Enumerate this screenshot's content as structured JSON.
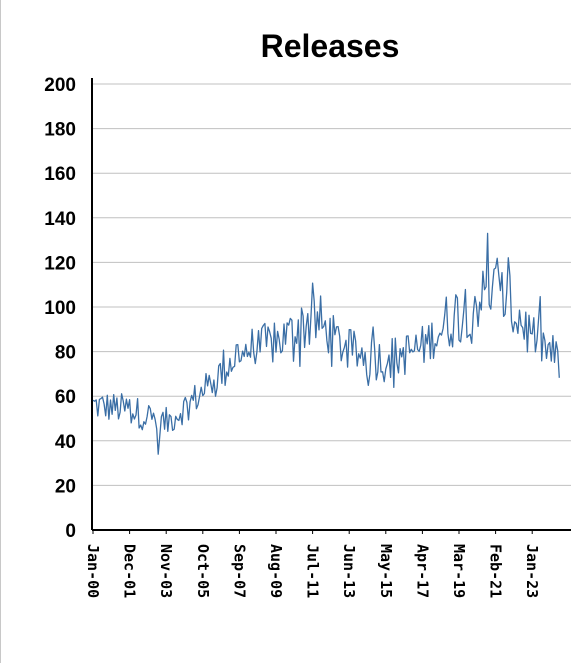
{
  "chart_data": {
    "type": "line",
    "title": "Releases",
    "xlabel": "",
    "ylabel": "",
    "ylim": [
      0,
      200
    ],
    "y_ticks": [
      "0",
      "20",
      "40",
      "60",
      "80",
      "100",
      "120",
      "140",
      "160",
      "180",
      "200"
    ],
    "x_ticks": [
      "Jan-00",
      "Dec-01",
      "Nov-03",
      "Oct-05",
      "Sep-07",
      "Aug-09",
      "Jul-11",
      "Jun-13",
      "May-15",
      "Apr-17",
      "Mar-19",
      "Feb-21",
      "Jan-23"
    ],
    "grid": true,
    "series": [
      {
        "color": "#3a6ea5",
        "anchors": [
          [
            "Jan-00",
            56
          ],
          [
            "Dec-01",
            54
          ],
          [
            "Nov-03",
            48
          ],
          [
            "Oct-05",
            62
          ],
          [
            "Sep-07",
            80
          ],
          [
            "Aug-09",
            84
          ],
          [
            "Jul-11",
            95
          ],
          [
            "Jun-13",
            80
          ],
          [
            "May-15",
            76
          ],
          [
            "Apr-17",
            82
          ],
          [
            "Mar-19",
            98
          ],
          [
            "Feb-21",
            108
          ],
          [
            "Jan-23",
            88
          ],
          [
            "Jun-24",
            75
          ]
        ],
        "low_point": [
          "Jun-03",
          34
        ],
        "high_point": [
          "Sep-20",
          133
        ]
      }
    ]
  }
}
